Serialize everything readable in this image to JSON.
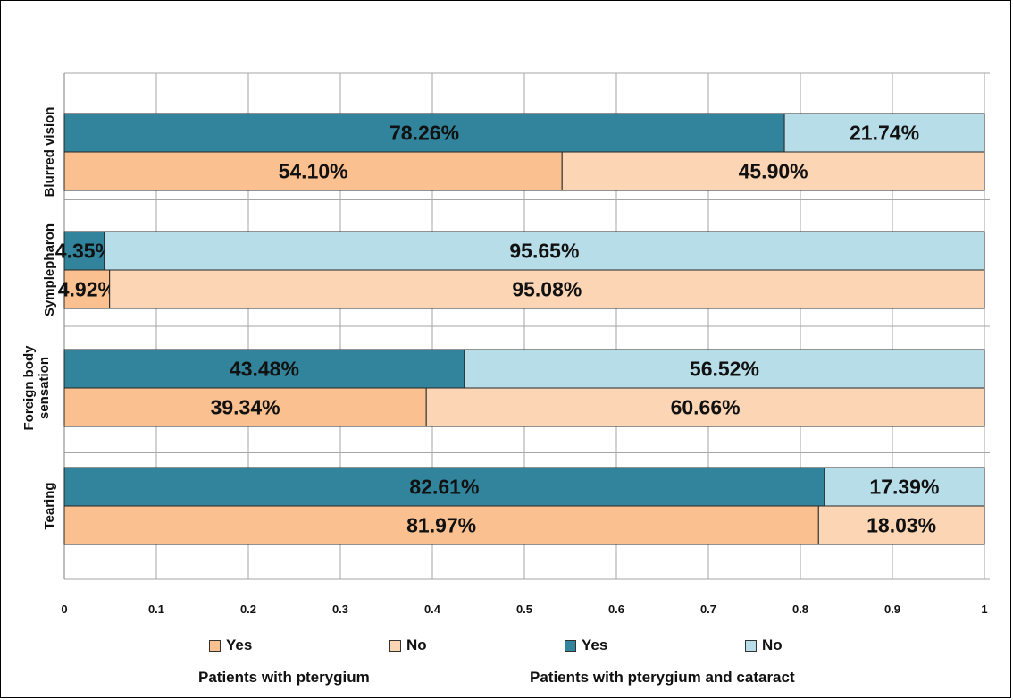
{
  "chart_data": {
    "type": "bar",
    "orientation": "horizontal",
    "stacked": true,
    "percent_stacked": true,
    "categories": [
      "Blurred vision",
      "Symplepharon",
      "Foreign body sensation",
      "Tearing"
    ],
    "category_label_lines": [
      [
        "Blurred vision"
      ],
      [
        "Symplepharon"
      ],
      [
        "Foreign body",
        "sensation"
      ],
      [
        "Tearing"
      ]
    ],
    "groups": [
      {
        "name": "Patients with pterygium and cataract",
        "series": [
          {
            "name": "Yes",
            "color": "#31849B",
            "values": [
              0.7826,
              0.0435,
              0.4348,
              0.8261
            ],
            "labels": [
              "78.26%",
              "4.35%",
              "43.48%",
              "82.61%"
            ]
          },
          {
            "name": "No",
            "color": "#B7DDE8",
            "values": [
              0.2174,
              0.9565,
              0.5652,
              0.1739
            ],
            "labels": [
              "21.74%",
              "95.65%",
              "56.52%",
              "17.39%"
            ]
          }
        ]
      },
      {
        "name": "Patients with pterygium",
        "series": [
          {
            "name": "Yes",
            "color": "#FAC090",
            "values": [
              0.541,
              0.0492,
              0.3934,
              0.8197
            ],
            "labels": [
              "54.10%",
              "4.92%",
              "39.34%",
              "81.97%"
            ]
          },
          {
            "name": "No",
            "color": "#FCD5B5",
            "values": [
              0.459,
              0.9508,
              0.6066,
              0.1803
            ],
            "labels": [
              "45.90%",
              "95.08%",
              "60.66%",
              "18.03%"
            ]
          }
        ]
      }
    ],
    "x_ticks": [
      "0",
      "0.1",
      "0.2",
      "0.3",
      "0.4",
      "0.5",
      "0.6",
      "0.7",
      "0.8",
      "0.9",
      "1"
    ],
    "xlim": [
      0,
      1
    ],
    "grid": true,
    "legend_position": "bottom"
  },
  "legend": {
    "items": [
      {
        "label": "Yes",
        "color": "#FAC090"
      },
      {
        "label": "No",
        "color": "#FCD5B5"
      },
      {
        "label": "Yes",
        "color": "#31849B"
      },
      {
        "label": "No",
        "color": "#B7DDE8"
      }
    ],
    "group_labels": [
      "Patients with pterygium",
      "Patients with pterygium and cataract"
    ]
  }
}
